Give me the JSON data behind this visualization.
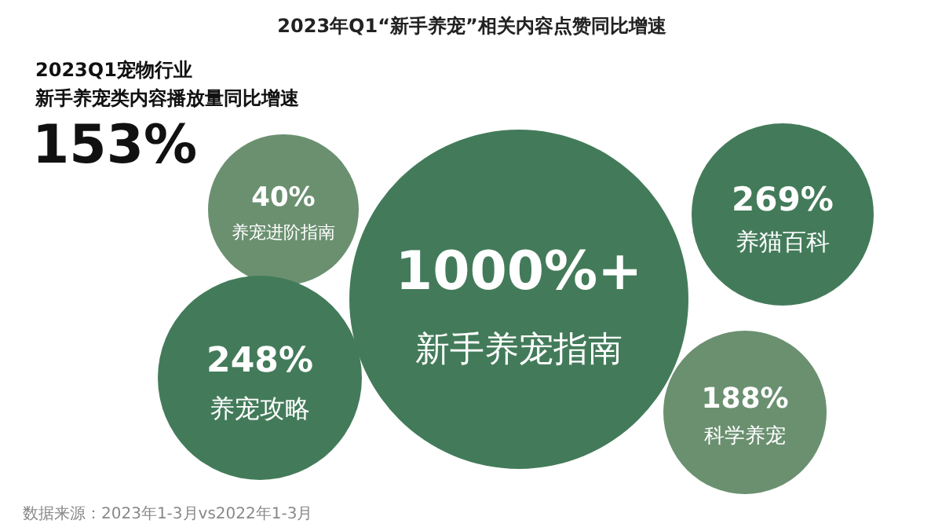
{
  "chart_data": {
    "type": "other",
    "title": "2023年Q1“新手养宠”相关内容点赞同比增速",
    "categories": [
      "养宠进阶指南",
      "新手养宠指南",
      "养猫百科",
      "养宠攻略",
      "科学养宠"
    ],
    "values": [
      40,
      1000,
      269,
      248,
      188
    ],
    "value_labels": [
      "40%",
      "1000%+",
      "269%",
      "248%",
      "188%"
    ],
    "colors": [
      "#6b9070",
      "#437b5a",
      "#437b5a",
      "#437b5a",
      "#6b9070"
    ],
    "annotations": [
      "2023Q1宠物行业",
      "新手养宠类内容播放量同比增速",
      "153%",
      "数据来源：2023年1-3月vs2022年1-3月"
    ]
  }
}
